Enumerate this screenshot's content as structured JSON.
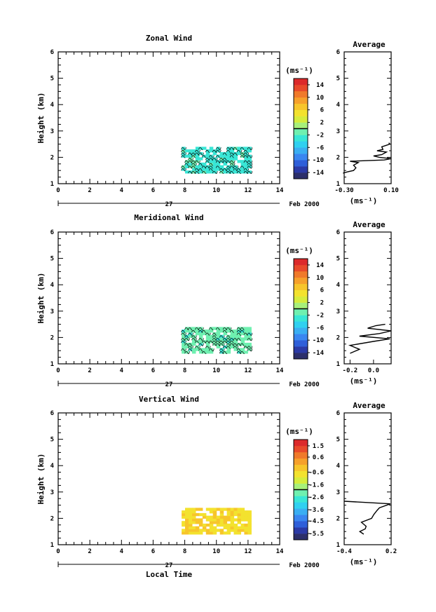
{
  "date_label": "Feb 2000",
  "day_label": "27",
  "x_axis_label": "Local Time",
  "y_axis_label": "Height (km)",
  "profile_title": "Average",
  "unit_label": "(ms⁻¹)",
  "x_ticks": [
    "0",
    "2",
    "4",
    "6",
    "8",
    "10",
    "12",
    "14"
  ],
  "y_ticks": [
    "1",
    "2",
    "3",
    "4",
    "5",
    "6"
  ],
  "colorscale": [
    "#2c2f6b",
    "#2b3aa6",
    "#2f5fd9",
    "#3a86f0",
    "#3aaef2",
    "#30d0f0",
    "#39e6d6",
    "#6ff0b0",
    "#a7f07a",
    "#d6ec3c",
    "#f3e22e",
    "#f7c52b",
    "#f6a02b",
    "#f07a2b",
    "#e84a2b",
    "#dc2a2b"
  ],
  "chart_data": [
    {
      "type": "heatmap",
      "title": "Zonal Wind",
      "xlim": [
        0,
        14
      ],
      "ylim": [
        1,
        6
      ],
      "data_extent_x": [
        7.8,
        12.2
      ],
      "data_extent_y": [
        1.4,
        2.4
      ],
      "dominant_color": "#39e6d6",
      "has_contours": true,
      "colorbar_ticks": [
        "14",
        "10",
        "6",
        "2",
        "-2",
        "-6",
        "-10",
        "-14"
      ],
      "colorbar_range": [
        -16,
        16
      ],
      "profile": {
        "xlim": [
          -0.3,
          0.1
        ],
        "x_ticks": [
          "-0.30",
          "0.10"
        ],
        "points": [
          [
            -0.31,
            1.4
          ],
          [
            -0.27,
            1.45
          ],
          [
            -0.22,
            1.5
          ],
          [
            -0.2,
            1.6
          ],
          [
            -0.22,
            1.7
          ],
          [
            -0.18,
            1.8
          ],
          [
            -0.25,
            1.85
          ],
          [
            0.04,
            1.9
          ],
          [
            0.1,
            1.95
          ],
          [
            0.0,
            2.0
          ],
          [
            -0.05,
            2.05
          ],
          [
            0.02,
            2.1
          ],
          [
            0.06,
            2.2
          ],
          [
            -0.02,
            2.25
          ],
          [
            0.03,
            2.3
          ],
          [
            0.02,
            2.4
          ],
          [
            0.09,
            2.5
          ],
          [
            0.08,
            2.55
          ]
        ]
      }
    },
    {
      "type": "heatmap",
      "title": "Meridional Wind",
      "xlim": [
        0,
        14
      ],
      "ylim": [
        1,
        6
      ],
      "data_extent_x": [
        7.8,
        12.2
      ],
      "data_extent_y": [
        1.4,
        2.4
      ],
      "dominant_color": "#6ff0b0",
      "has_contours": true,
      "colorbar_ticks": [
        "14",
        "10",
        "6",
        "2",
        "-2",
        "-6",
        "-10",
        "-14"
      ],
      "colorbar_range": [
        -16,
        16
      ],
      "profile": {
        "xlim": [
          -0.25,
          0.15
        ],
        "x_ticks": [
          "-0.2",
          "0.0"
        ],
        "points": [
          [
            -0.2,
            1.4
          ],
          [
            -0.12,
            1.55
          ],
          [
            -0.2,
            1.7
          ],
          [
            0.0,
            1.85
          ],
          [
            0.14,
            1.95
          ],
          [
            -0.12,
            2.05
          ],
          [
            0.05,
            2.15
          ],
          [
            0.15,
            2.25
          ],
          [
            -0.05,
            2.35
          ],
          [
            0.02,
            2.45
          ],
          [
            0.1,
            2.5
          ]
        ]
      }
    },
    {
      "type": "heatmap",
      "title": "Vertical Wind",
      "xlim": [
        0,
        14
      ],
      "ylim": [
        1,
        6
      ],
      "data_extent_x": [
        7.8,
        12.2
      ],
      "data_extent_y": [
        1.4,
        2.4
      ],
      "dominant_color": "#f3e22e",
      "has_contours": false,
      "colorbar_ticks": [
        "1.5",
        "0.6",
        "-0.6",
        "-1.6",
        "-2.6",
        "-3.6",
        "-4.5",
        "-5.5"
      ],
      "colorbar_range": [
        -6.0,
        2.0
      ],
      "profile": {
        "xlim": [
          -0.4,
          0.2
        ],
        "x_ticks": [
          "-0.4",
          "0.2"
        ],
        "points": [
          [
            -0.15,
            1.4
          ],
          [
            -0.2,
            1.5
          ],
          [
            -0.13,
            1.6
          ],
          [
            -0.12,
            1.7
          ],
          [
            -0.18,
            1.85
          ],
          [
            -0.05,
            2.0
          ],
          [
            -0.02,
            2.15
          ],
          [
            0.02,
            2.3
          ],
          [
            0.05,
            2.4
          ],
          [
            0.19,
            2.55
          ],
          [
            -0.4,
            2.65
          ]
        ]
      }
    }
  ]
}
